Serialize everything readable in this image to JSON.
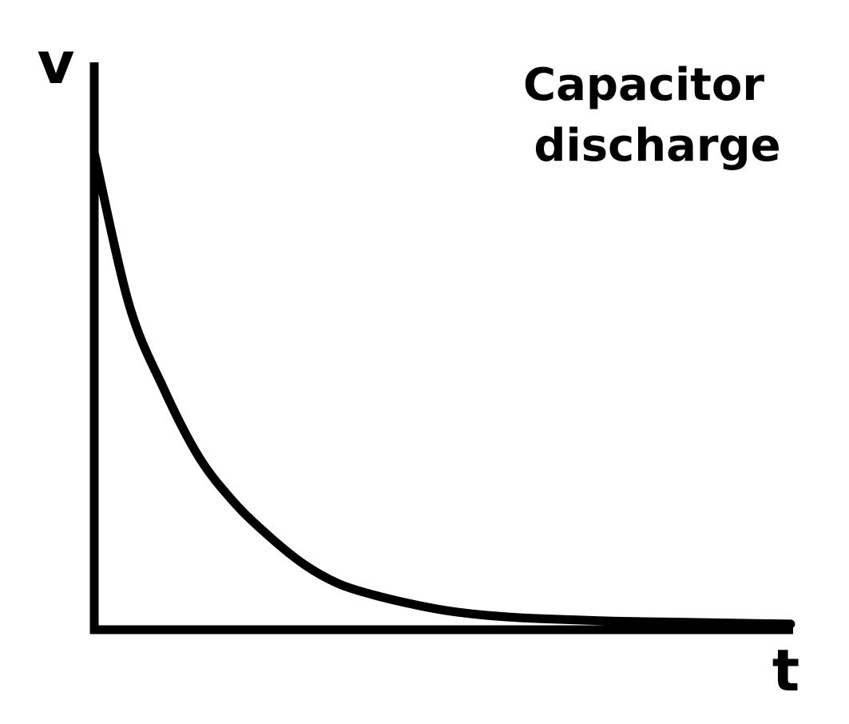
{
  "chart_data": {
    "type": "line",
    "title_lines": [
      "Capacitor",
      "discharge"
    ],
    "xlabel": "t",
    "ylabel": "v",
    "xlim": [
      0,
      10
    ],
    "ylim": [
      0,
      1
    ],
    "grid": false,
    "x_ticks": [],
    "y_ticks": [],
    "series": [
      {
        "x": [
          0,
          0.5,
          1,
          1.5,
          2,
          2.5,
          3,
          3.5,
          4,
          4.5,
          5,
          5.5,
          6,
          6.5,
          7,
          7.5,
          8,
          8.5,
          9,
          9.5,
          10
        ],
        "y": [
          0.84,
          0.57,
          0.42,
          0.3,
          0.22,
          0.16,
          0.11,
          0.075,
          0.055,
          0.04,
          0.028,
          0.02,
          0.015,
          0.012,
          0.01,
          0.008,
          0.007,
          0.006,
          0.005,
          0.004,
          0.003
        ]
      }
    ],
    "colors": {
      "curve": "#000000",
      "axes": "#000000",
      "background": "#ffffff"
    }
  }
}
